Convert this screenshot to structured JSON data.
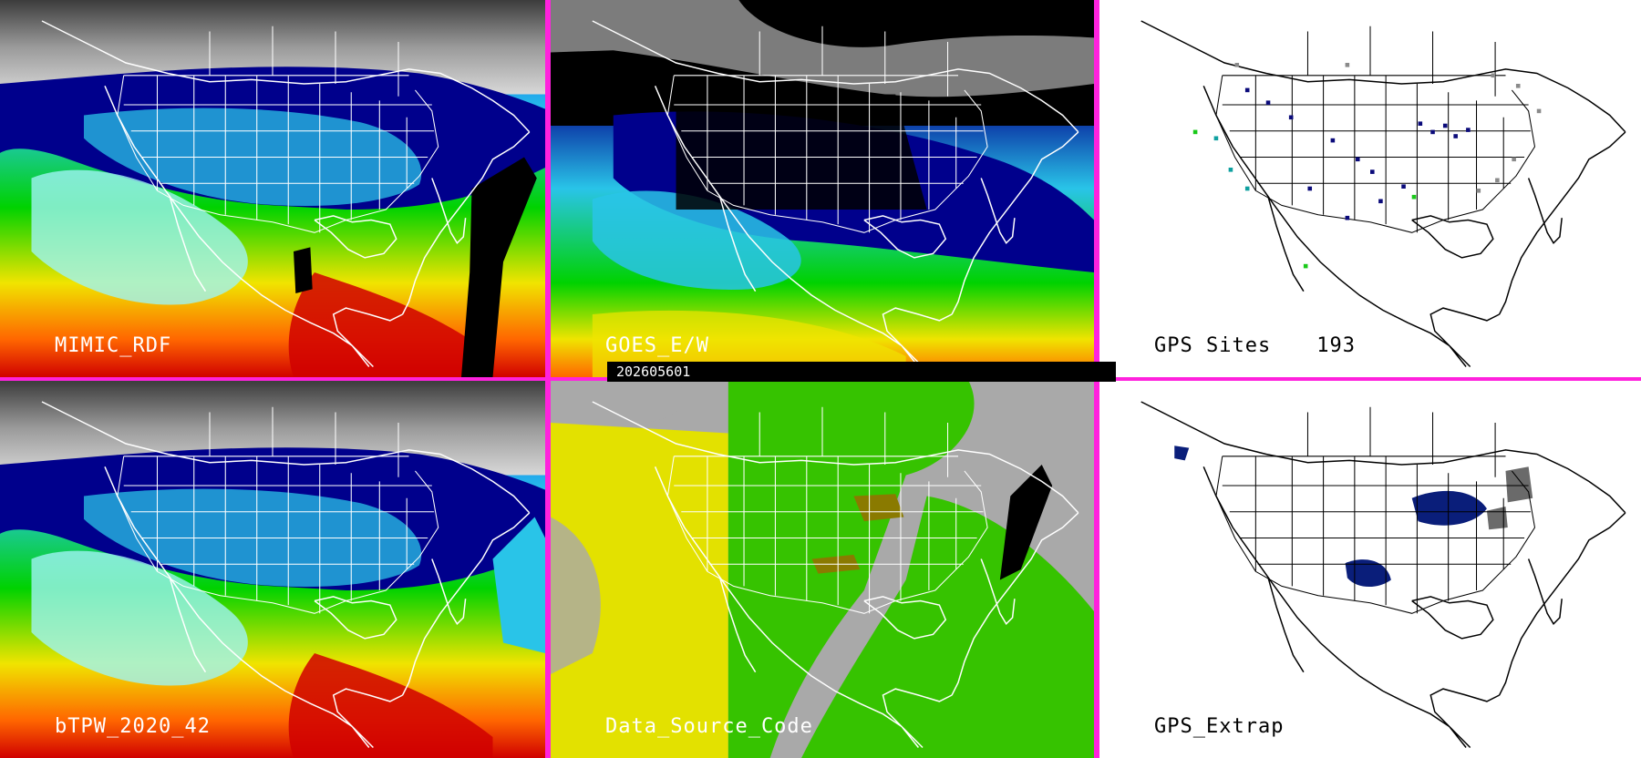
{
  "timestamp": "202605601",
  "panels": [
    {
      "id": "mimic",
      "label": "MIMIC_RDF"
    },
    {
      "id": "goes",
      "label": "GOES_E/W"
    },
    {
      "id": "gps-sites",
      "label": "GPS Sites",
      "count": "193"
    },
    {
      "id": "btpw",
      "label": "bTPW_2020_42"
    },
    {
      "id": "data-source",
      "label": "Data_Source_Code"
    },
    {
      "id": "gps-extrap",
      "label": "GPS_Extrap"
    }
  ],
  "colors": {
    "divider": "#ff22dd",
    "tpw_scale": [
      "#000000",
      "#6a6a6a",
      "#c8c8c8",
      "#00008c",
      "#0020ff",
      "#29c4e8",
      "#9ff4f4",
      "#00d200",
      "#9ee000",
      "#f0e400",
      "#ff6600",
      "#d00000"
    ],
    "data_source": [
      "#e3e100",
      "#36c300",
      "#a9a9a9",
      "#8a7a00",
      "#000000"
    ],
    "gps_markers": [
      "#0a0a7a",
      "#8a8a8a",
      "#0fa0a0",
      "#19c919"
    ]
  }
}
